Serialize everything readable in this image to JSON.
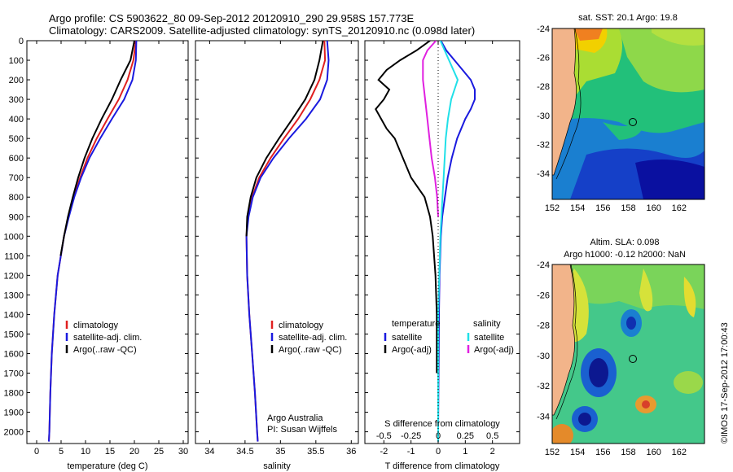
{
  "title": {
    "line1": "Argo profile: CS 5903622_80 09-Sep-2012 20120910_290 29.958S 157.773E",
    "line2": "Climatology: CARS2009. Satellite-adjusted climatology: synTS_20120910.nc (0.098d later)"
  },
  "colors": {
    "climatology": "#e02020",
    "satellite": "#1a1adf",
    "argo": "#000000",
    "sat_salinity": "#20e0e8",
    "argo_salinity": "#e020e0",
    "land": "#f2b48a"
  },
  "chart_data": [
    {
      "type": "line",
      "name": "temperature-panel",
      "xlabel": "temperature (deg C)",
      "xlim": [
        -2,
        31
      ],
      "xticks": [
        "0",
        "5",
        "10",
        "15",
        "20",
        "25",
        "30"
      ],
      "ylim": [
        0,
        2060
      ],
      "yticks": [
        "0",
        "100",
        "200",
        "300",
        "400",
        "500",
        "600",
        "700",
        "800",
        "900",
        "1000",
        "1100",
        "1200",
        "1300",
        "1400",
        "1500",
        "1600",
        "1700",
        "1800",
        "1900",
        "2000"
      ],
      "legend": [
        "climatology",
        "satellite-adj. clim.",
        "Argo(..raw -QC)"
      ],
      "series": [
        {
          "name": "climatology",
          "depth": [
            0,
            100,
            200,
            300,
            400,
            500,
            600,
            700,
            800,
            900,
            1000,
            1200,
            1400,
            1600,
            1800,
            2000,
            2050
          ],
          "values": [
            20.3,
            19.8,
            18.6,
            16.8,
            14.5,
            12.3,
            10.4,
            8.9,
            7.6,
            6.5,
            5.6,
            4.3,
            3.6,
            3.1,
            2.8,
            2.6,
            2.5
          ]
        },
        {
          "name": "satellite-adj. clim.",
          "depth": [
            0,
            100,
            200,
            300,
            400,
            500,
            600,
            700,
            800,
            900,
            1000,
            1200,
            1400,
            1600,
            1800,
            2000,
            2050
          ],
          "values": [
            20.4,
            20.3,
            19.6,
            17.9,
            15.4,
            13.0,
            10.8,
            9.1,
            7.7,
            6.6,
            5.6,
            4.3,
            3.6,
            3.1,
            2.8,
            2.6,
            2.5
          ]
        },
        {
          "name": "Argo(..raw -QC)",
          "depth": [
            0,
            100,
            200,
            300,
            400,
            500,
            600,
            700,
            800,
            900,
            1000,
            1100
          ],
          "values": [
            20.0,
            19.2,
            17.2,
            15.4,
            13.3,
            11.4,
            9.8,
            8.5,
            7.4,
            6.4,
            5.6,
            4.9
          ]
        }
      ]
    },
    {
      "type": "line",
      "name": "salinity-panel",
      "xlabel": "salinity",
      "xlim": [
        33.8,
        36.1
      ],
      "xticks": [
        "34",
        "34.5",
        "35",
        "35.5",
        "36"
      ],
      "ylim": [
        0,
        2060
      ],
      "legend": [
        "climatology",
        "satellite-adj. clim.",
        "Argo(..raw -QC)"
      ],
      "annotation": [
        "Argo Australia",
        "PI: Susan Wijffels"
      ],
      "series": [
        {
          "name": "climatology",
          "depth": [
            0,
            100,
            200,
            300,
            400,
            500,
            600,
            700,
            800,
            900,
            1000,
            1200,
            1400,
            1600,
            1800,
            2000,
            2050
          ],
          "values": [
            35.62,
            35.63,
            35.55,
            35.42,
            35.25,
            35.05,
            34.86,
            34.7,
            34.6,
            34.54,
            34.52,
            34.53,
            34.56,
            34.6,
            34.64,
            34.67,
            34.68
          ]
        },
        {
          "name": "satellite-adj. clim.",
          "depth": [
            0,
            100,
            200,
            300,
            400,
            500,
            600,
            700,
            800,
            900,
            1000,
            1200,
            1400,
            1600,
            1800,
            2000,
            2050
          ],
          "values": [
            35.66,
            35.68,
            35.66,
            35.56,
            35.36,
            35.12,
            34.9,
            34.72,
            34.61,
            34.55,
            34.52,
            34.53,
            34.56,
            34.6,
            34.64,
            34.67,
            34.68
          ]
        },
        {
          "name": "Argo(..raw -QC)",
          "depth": [
            0,
            100,
            200,
            300,
            400,
            500,
            600,
            700,
            800,
            900,
            1000
          ],
          "values": [
            35.6,
            35.55,
            35.48,
            35.35,
            35.17,
            34.98,
            34.8,
            34.66,
            34.58,
            34.53,
            34.52
          ]
        }
      ]
    },
    {
      "type": "line",
      "name": "difference-panel",
      "xlabel_top": "S difference from climatology",
      "xticks_top": [
        "-0.5",
        "-0.25",
        "0",
        "0.25",
        "0.5"
      ],
      "xlabel": "T difference from climatology",
      "xlim": [
        -2.7,
        3.0
      ],
      "xticks": [
        "-2",
        "-1",
        "0",
        "1",
        "2"
      ],
      "ylim": [
        0,
        2060
      ],
      "legend_temperature": {
        "heading": "temperature",
        "items": [
          "satellite",
          "Argo(-adj)"
        ]
      },
      "legend_salinity": {
        "heading": "salinity",
        "items": [
          "satellite",
          "Argo(-adj)"
        ]
      },
      "series": [
        {
          "name": "temperature satellite",
          "depth": [
            0,
            50,
            100,
            150,
            200,
            250,
            300,
            350,
            400,
            500,
            600,
            700,
            800,
            900,
            1000,
            1200,
            1400,
            1600,
            1800,
            2000,
            2050
          ],
          "values": [
            0.1,
            0.3,
            0.6,
            0.9,
            1.2,
            1.35,
            1.35,
            1.2,
            1.0,
            0.7,
            0.5,
            0.35,
            0.25,
            0.15,
            0.1,
            0.05,
            0.03,
            0.02,
            0.01,
            0.0,
            0.0
          ]
        },
        {
          "name": "temperature Argo(-adj)",
          "depth": [
            0,
            50,
            100,
            150,
            200,
            250,
            300,
            350,
            400,
            450,
            500,
            600,
            700,
            800,
            900,
            1000,
            1200,
            1400,
            1600,
            1700
          ],
          "values": [
            -0.3,
            -0.8,
            -1.4,
            -1.9,
            -2.2,
            -1.8,
            -2.0,
            -2.3,
            -2.1,
            -1.9,
            -1.6,
            -1.3,
            -1.0,
            -0.5,
            -0.3,
            -0.2,
            -0.1,
            -0.05,
            -0.05,
            -0.05
          ]
        },
        {
          "name": "salinity satellite",
          "depth": [
            0,
            100,
            200,
            300,
            400,
            500,
            600,
            700,
            800,
            1000,
            1200,
            1400,
            1600,
            1800,
            2000,
            2050
          ],
          "values": [
            0.02,
            0.1,
            0.18,
            0.12,
            0.09,
            0.07,
            0.06,
            0.05,
            0.04,
            0.02,
            0.01,
            0.0,
            0.0,
            0.0,
            0.0,
            0.0
          ]
        },
        {
          "name": "salinity Argo(-adj)",
          "depth": [
            0,
            50,
            100,
            200,
            300,
            400,
            500,
            600,
            700,
            800,
            900
          ],
          "values": [
            -0.02,
            -0.1,
            -0.14,
            -0.14,
            -0.12,
            -0.1,
            -0.08,
            -0.06,
            -0.03,
            -0.01,
            0.0
          ]
        }
      ]
    },
    {
      "type": "heatmap",
      "name": "sst-map",
      "title": "sat. SST: 20.1  Argo: 19.8",
      "xticks": [
        "152",
        "154",
        "156",
        "158",
        "160",
        "162"
      ],
      "yticks": [
        "-24",
        "-26",
        "-28",
        "-30",
        "-32",
        "-34"
      ],
      "xlim": [
        152,
        164
      ],
      "ylim": [
        -35.8,
        -24
      ],
      "argo_position": {
        "lon": 157.8,
        "lat": -30.0
      }
    },
    {
      "type": "heatmap",
      "name": "sla-map",
      "title1": "Altim. SLA: 0.098",
      "title2": "Argo h1000: -0.12 h2000: NaN",
      "xticks": [
        "152",
        "154",
        "156",
        "158",
        "160",
        "162"
      ],
      "yticks": [
        "-24",
        "-26",
        "-28",
        "-30",
        "-32",
        "-34"
      ],
      "xlim": [
        152,
        164
      ],
      "ylim": [
        -35.8,
        -24
      ],
      "argo_position": {
        "lon": 157.8,
        "lat": -30.0
      }
    }
  ],
  "footer_stamp": "©IMOS 17-Sep-2012 17:00:43"
}
